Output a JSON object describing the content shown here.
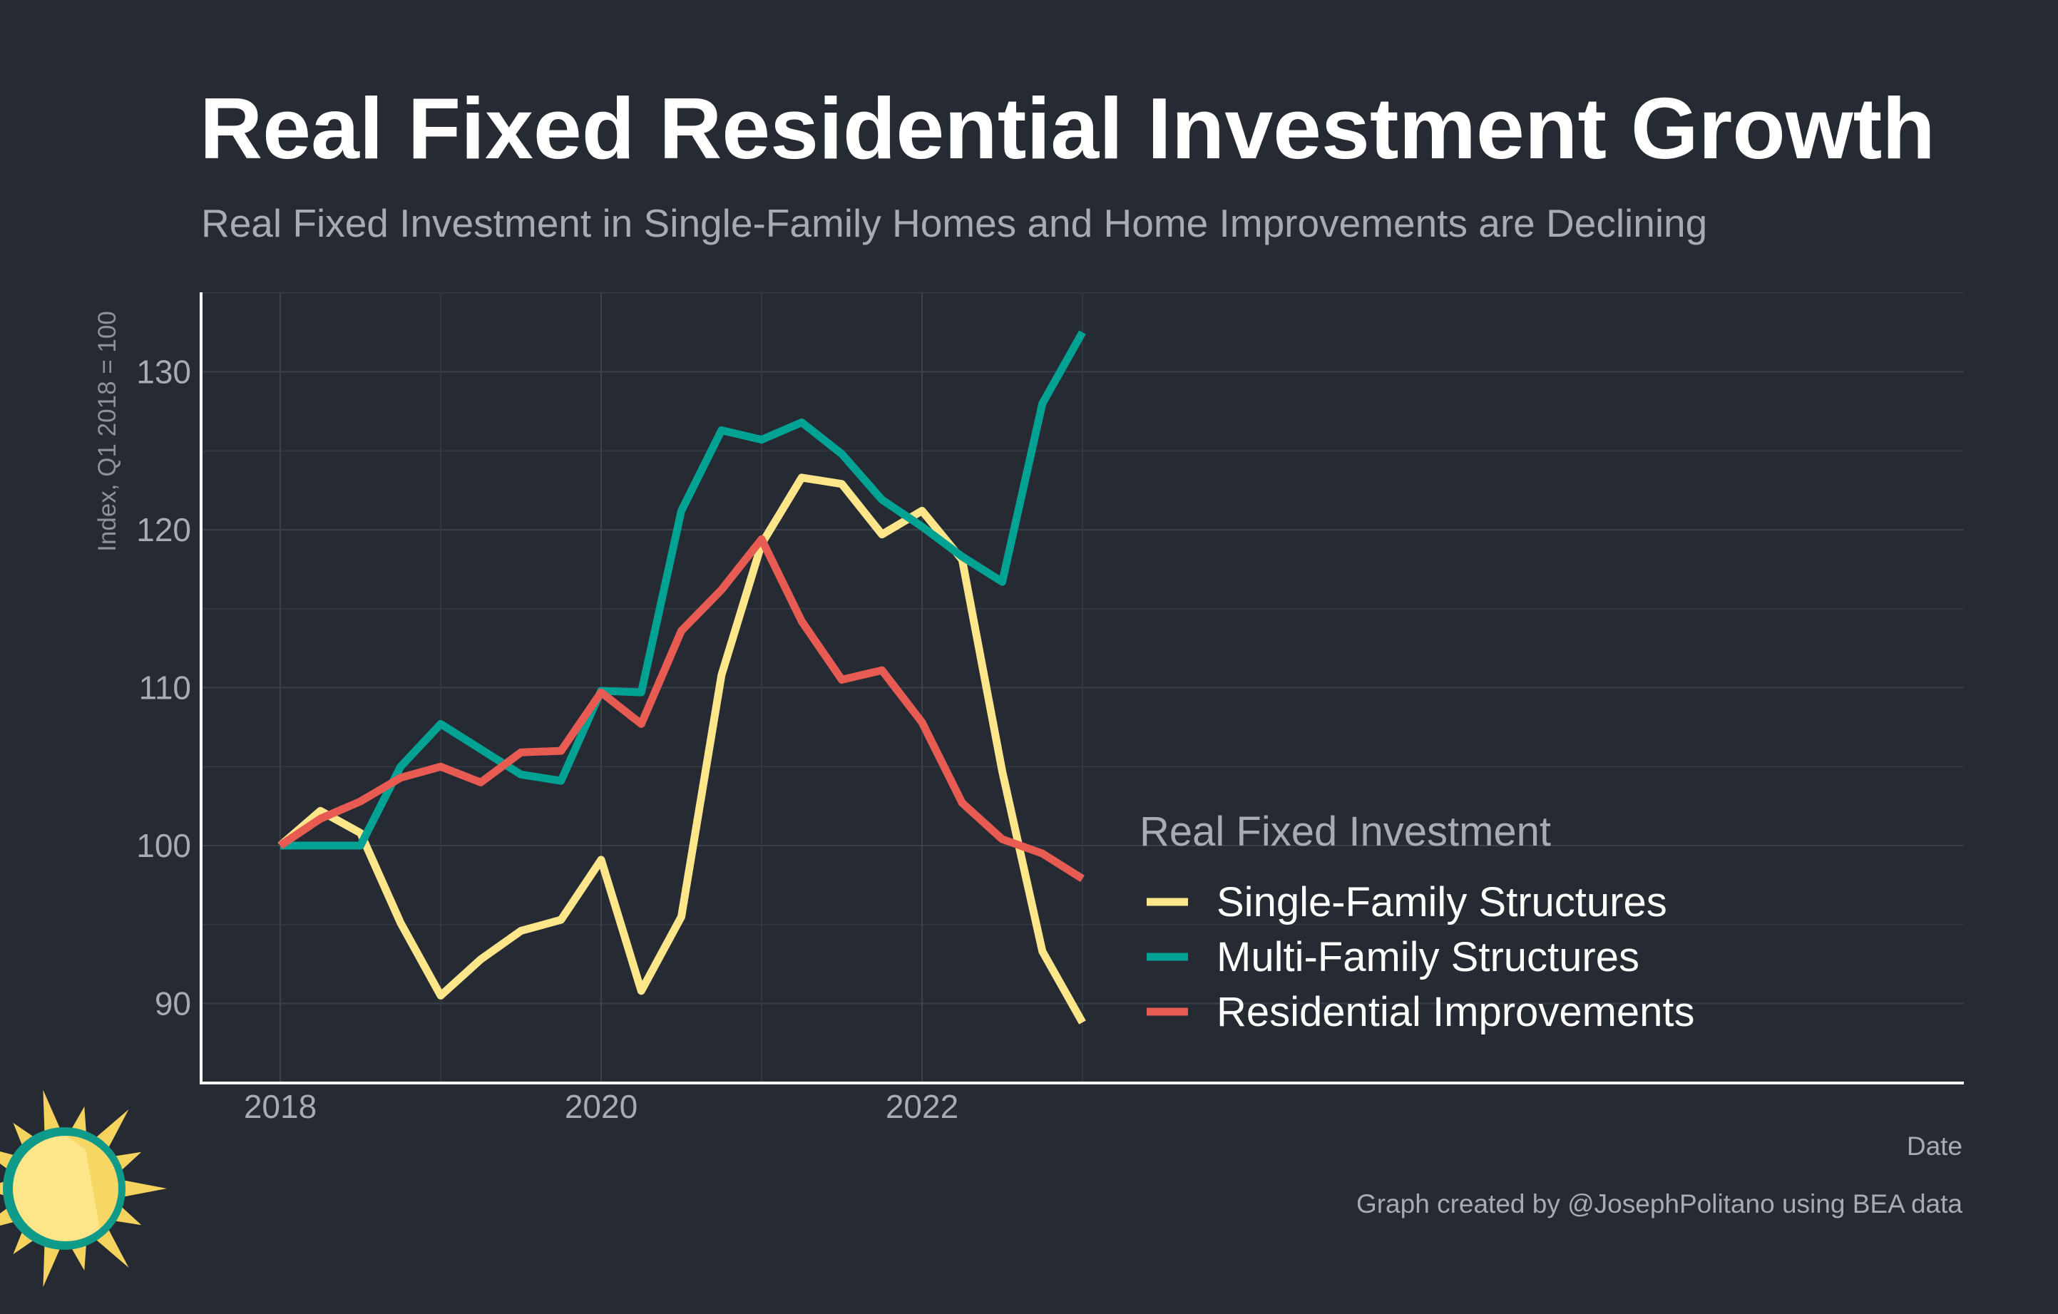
{
  "colors": {
    "background": "#252a33",
    "single_family": "#fde68a",
    "multi_family": "#00a294",
    "improvements": "#e85b52",
    "logo_teal": "#0f9a8a",
    "logo_yellow": "#f6d35c"
  },
  "logo": {
    "icon": "sun-logo-icon"
  },
  "caption": "Graph created by @JosephPolitano using BEA data",
  "chart_data": {
    "type": "line",
    "title": "Real Fixed Residential Investment Growth",
    "subtitle": "Real Fixed Investment in Single-Family Homes and Home Improvements are Declining",
    "xlabel": "Date",
    "ylabel": "Index, Q1 2018 = 100",
    "xlim": [
      "2017-10",
      "2023-03"
    ],
    "ylim": [
      85,
      135
    ],
    "x_ticks": [
      "2018",
      "2020",
      "2022"
    ],
    "y_ticks": [
      90,
      100,
      110,
      120,
      130
    ],
    "grid": true,
    "legend": {
      "title": "Real Fixed Investment",
      "position": "bottom-right"
    },
    "x": [
      "2018-Q1",
      "2018-Q2",
      "2018-Q3",
      "2018-Q4",
      "2019-Q1",
      "2019-Q2",
      "2019-Q3",
      "2019-Q4",
      "2020-Q1",
      "2020-Q2",
      "2020-Q3",
      "2020-Q4",
      "2021-Q1",
      "2021-Q2",
      "2021-Q3",
      "2021-Q4",
      "2022-Q1",
      "2022-Q2",
      "2022-Q3",
      "2022-Q4",
      "2023-Q1"
    ],
    "series": [
      {
        "name": "Single-Family Structures",
        "color": "#fde68a",
        "values": [
          100.0,
          102.2,
          100.8,
          95.1,
          90.5,
          92.8,
          94.6,
          95.3,
          99.1,
          90.8,
          95.5,
          110.8,
          119.1,
          123.3,
          122.9,
          119.7,
          121.2,
          118.1,
          104.7,
          93.3,
          88.8
        ]
      },
      {
        "name": "Multi-Family Structures",
        "color": "#00a294",
        "values": [
          100.0,
          100.0,
          100.0,
          105.0,
          107.7,
          106.1,
          104.5,
          104.1,
          109.8,
          109.7,
          121.2,
          126.3,
          125.7,
          126.8,
          124.8,
          121.9,
          120.2,
          118.3,
          116.7,
          128.0,
          132.5
        ]
      },
      {
        "name": "Residential Improvements",
        "color": "#e85b52",
        "values": [
          100.0,
          101.7,
          102.8,
          104.3,
          105.0,
          104.0,
          105.9,
          106.0,
          109.7,
          107.7,
          113.6,
          116.2,
          119.4,
          114.2,
          110.5,
          111.1,
          107.8,
          102.7,
          100.4,
          99.5,
          97.9
        ]
      }
    ]
  }
}
